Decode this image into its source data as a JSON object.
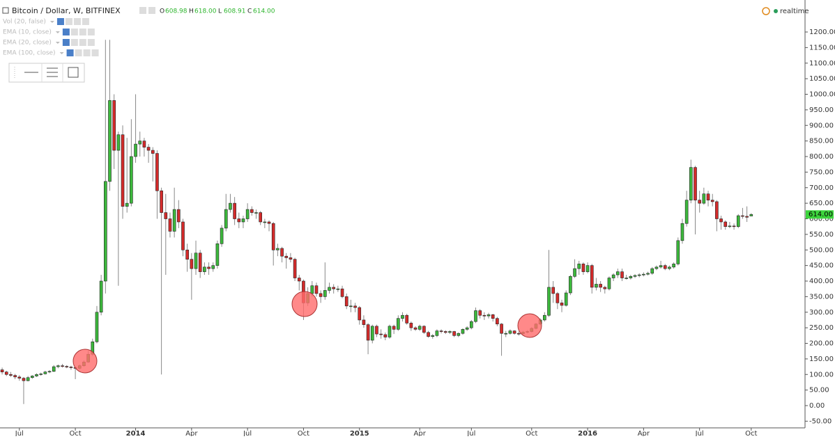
{
  "chart_data": {
    "type": "candlestick",
    "title": "Bitcoin / Dollar, W, BITFINEX",
    "last_value_names": [
      "O",
      "H",
      "L",
      "C"
    ],
    "last_value_labels": [
      "608.98",
      "618.00",
      "608.91",
      "614.00"
    ],
    "indicators": [
      "Vol (20, false)",
      "EMA (10, close)",
      "EMA (20, close)",
      "EMA (100, close)"
    ],
    "status": "realtime",
    "up_color": "#3cb83c",
    "down_color": "#d42b2b",
    "xlim": [
      -0.5,
      186.5
    ],
    "ylim": [
      -71.5,
      1302.8
    ],
    "xticks": [
      {
        "value": 4,
        "label": "Jul"
      },
      {
        "value": 17,
        "label": "Oct"
      },
      {
        "value": 31,
        "label": "2014"
      },
      {
        "value": 44,
        "label": "Apr"
      },
      {
        "value": 57,
        "label": "Jul"
      },
      {
        "value": 70,
        "label": "Oct"
      },
      {
        "value": 83,
        "label": "2015"
      },
      {
        "value": 97,
        "label": "Apr"
      },
      {
        "value": 109,
        "label": "Jul"
      },
      {
        "value": 123,
        "label": "Oct"
      },
      {
        "value": 136,
        "label": "2016"
      },
      {
        "value": 149,
        "label": "Apr"
      },
      {
        "value": 162,
        "label": "Jul"
      },
      {
        "value": 174,
        "label": "Oct"
      }
    ],
    "yticks": [
      {
        "value": -50,
        "label": "-50.00"
      },
      {
        "value": 0,
        "label": "0.00"
      },
      {
        "value": 50,
        "label": "50.00"
      },
      {
        "value": 100,
        "label": "100.00"
      },
      {
        "value": 150,
        "label": "150.00"
      },
      {
        "value": 200,
        "label": "200.00"
      },
      {
        "value": 250,
        "label": "250.00"
      },
      {
        "value": 300,
        "label": "300.00"
      },
      {
        "value": 350,
        "label": "350.00"
      },
      {
        "value": 400,
        "label": "400.00"
      },
      {
        "value": 450,
        "label": "450.00"
      },
      {
        "value": 500,
        "label": "500.00"
      },
      {
        "value": 550,
        "label": "550.00"
      },
      {
        "value": 600,
        "label": "600.00"
      },
      {
        "value": 650,
        "label": "650.00"
      },
      {
        "value": 700,
        "label": "700.00"
      },
      {
        "value": 750,
        "label": "750.00"
      },
      {
        "value": 800,
        "label": "800.00"
      },
      {
        "value": 850,
        "label": "850.00"
      },
      {
        "value": 900,
        "label": "900.00"
      },
      {
        "value": 950,
        "label": "950.00"
      },
      {
        "value": 1000,
        "label": "1000.00"
      },
      {
        "value": 1050,
        "label": "1050.00"
      },
      {
        "value": 1100,
        "label": "1100.00"
      },
      {
        "value": 1150,
        "label": "1150.00"
      },
      {
        "value": 1200,
        "label": "1200.00"
      }
    ],
    "candles": [
      [
        115,
        122,
        100,
        108
      ],
      [
        108,
        112,
        95,
        100
      ],
      [
        100,
        108,
        92,
        97
      ],
      [
        97,
        102,
        85,
        92
      ],
      [
        92,
        98,
        80,
        88
      ],
      [
        88,
        92,
        5,
        80
      ],
      [
        80,
        95,
        78,
        90
      ],
      [
        90,
        98,
        86,
        95
      ],
      [
        95,
        104,
        92,
        100
      ],
      [
        100,
        106,
        96,
        102
      ],
      [
        102,
        112,
        100,
        108
      ],
      [
        108,
        114,
        104,
        110
      ],
      [
        110,
        130,
        108,
        125
      ],
      [
        125,
        132,
        120,
        128
      ],
      [
        128,
        134,
        122,
        126
      ],
      [
        126,
        130,
        120,
        124
      ],
      [
        124,
        128,
        115,
        122
      ],
      [
        122,
        126,
        85,
        120
      ],
      [
        120,
        132,
        116,
        128
      ],
      [
        128,
        145,
        125,
        140
      ],
      [
        140,
        175,
        138,
        165
      ],
      [
        165,
        215,
        160,
        205
      ],
      [
        205,
        320,
        200,
        300
      ],
      [
        300,
        420,
        290,
        400
      ],
      [
        400,
        1175,
        360,
        720
      ],
      [
        720,
        1175,
        690,
        980
      ],
      [
        980,
        1000,
        760,
        820
      ],
      [
        820,
        880,
        385,
        870
      ],
      [
        870,
        900,
        600,
        640
      ],
      [
        640,
        860,
        620,
        650
      ],
      [
        650,
        920,
        640,
        800
      ],
      [
        800,
        1000,
        780,
        840
      ],
      [
        840,
        880,
        800,
        850
      ],
      [
        850,
        860,
        800,
        830
      ],
      [
        830,
        840,
        780,
        820
      ],
      [
        820,
        830,
        720,
        810
      ],
      [
        810,
        820,
        600,
        690
      ],
      [
        690,
        700,
        100,
        620
      ],
      [
        620,
        680,
        420,
        600
      ],
      [
        600,
        620,
        540,
        560
      ],
      [
        560,
        700,
        540,
        630
      ],
      [
        630,
        660,
        570,
        590
      ],
      [
        590,
        600,
        480,
        500
      ],
      [
        500,
        520,
        430,
        470
      ],
      [
        470,
        490,
        340,
        440
      ],
      [
        440,
        530,
        420,
        490
      ],
      [
        490,
        500,
        410,
        430
      ],
      [
        430,
        460,
        420,
        445
      ],
      [
        445,
        460,
        420,
        440
      ],
      [
        440,
        460,
        430,
        450
      ],
      [
        450,
        530,
        440,
        520
      ],
      [
        520,
        580,
        510,
        570
      ],
      [
        570,
        680,
        560,
        630
      ],
      [
        630,
        680,
        620,
        650
      ],
      [
        650,
        670,
        580,
        600
      ],
      [
        600,
        620,
        570,
        590
      ],
      [
        590,
        610,
        570,
        600
      ],
      [
        600,
        650,
        590,
        630
      ],
      [
        630,
        640,
        610,
        620
      ],
      [
        620,
        630,
        600,
        620
      ],
      [
        620,
        625,
        580,
        590
      ],
      [
        590,
        600,
        570,
        590
      ],
      [
        590,
        595,
        560,
        585
      ],
      [
        585,
        590,
        450,
        500
      ],
      [
        500,
        520,
        480,
        505
      ],
      [
        505,
        510,
        460,
        480
      ],
      [
        480,
        490,
        440,
        475
      ],
      [
        475,
        490,
        460,
        470
      ],
      [
        470,
        475,
        400,
        410
      ],
      [
        410,
        420,
        370,
        400
      ],
      [
        400,
        405,
        275,
        330
      ],
      [
        330,
        380,
        320,
        360
      ],
      [
        360,
        400,
        350,
        385
      ],
      [
        385,
        395,
        350,
        360
      ],
      [
        360,
        370,
        330,
        350
      ],
      [
        350,
        460,
        340,
        370
      ],
      [
        370,
        395,
        360,
        380
      ],
      [
        380,
        390,
        360,
        375
      ],
      [
        375,
        385,
        365,
        375
      ],
      [
        375,
        385,
        345,
        350
      ],
      [
        350,
        360,
        310,
        320
      ],
      [
        320,
        340,
        300,
        320
      ],
      [
        320,
        330,
        300,
        315
      ],
      [
        315,
        320,
        260,
        275
      ],
      [
        275,
        290,
        250,
        260
      ],
      [
        260,
        265,
        165,
        210
      ],
      [
        210,
        260,
        200,
        255
      ],
      [
        255,
        260,
        220,
        230
      ],
      [
        230,
        245,
        215,
        228
      ],
      [
        228,
        235,
        210,
        220
      ],
      [
        220,
        260,
        215,
        255
      ],
      [
        255,
        260,
        230,
        245
      ],
      [
        245,
        290,
        240,
        280
      ],
      [
        280,
        300,
        270,
        290
      ],
      [
        290,
        295,
        260,
        265
      ],
      [
        265,
        270,
        240,
        250
      ],
      [
        250,
        255,
        240,
        245
      ],
      [
        245,
        260,
        240,
        255
      ],
      [
        255,
        258,
        230,
        235
      ],
      [
        235,
        240,
        218,
        222
      ],
      [
        222,
        230,
        215,
        225
      ],
      [
        225,
        245,
        220,
        240
      ],
      [
        240,
        245,
        232,
        238
      ],
      [
        238,
        242,
        230,
        235
      ],
      [
        235,
        242,
        230,
        238
      ],
      [
        238,
        240,
        220,
        225
      ],
      [
        225,
        235,
        220,
        232
      ],
      [
        232,
        248,
        228,
        245
      ],
      [
        245,
        255,
        240,
        250
      ],
      [
        250,
        275,
        245,
        270
      ],
      [
        270,
        315,
        265,
        305
      ],
      [
        305,
        310,
        280,
        290
      ],
      [
        290,
        300,
        275,
        288
      ],
      [
        288,
        298,
        280,
        292
      ],
      [
        292,
        295,
        270,
        280
      ],
      [
        280,
        285,
        255,
        262
      ],
      [
        262,
        265,
        160,
        232
      ],
      [
        232,
        240,
        220,
        232
      ],
      [
        232,
        245,
        228,
        240
      ],
      [
        240,
        242,
        228,
        232
      ],
      [
        232,
        238,
        225,
        231
      ],
      [
        231,
        240,
        228,
        236
      ],
      [
        236,
        242,
        232,
        238
      ],
      [
        238,
        252,
        235,
        248
      ],
      [
        248,
        265,
        245,
        262
      ],
      [
        262,
        280,
        258,
        275
      ],
      [
        275,
        300,
        270,
        290
      ],
      [
        290,
        500,
        285,
        380
      ],
      [
        380,
        400,
        330,
        360
      ],
      [
        360,
        365,
        310,
        330
      ],
      [
        330,
        340,
        300,
        322
      ],
      [
        322,
        370,
        318,
        362
      ],
      [
        362,
        420,
        355,
        415
      ],
      [
        415,
        470,
        410,
        440
      ],
      [
        440,
        465,
        420,
        455
      ],
      [
        455,
        460,
        420,
        430
      ],
      [
        430,
        460,
        425,
        450
      ],
      [
        450,
        455,
        360,
        380
      ],
      [
        380,
        410,
        370,
        390
      ],
      [
        390,
        400,
        365,
        380
      ],
      [
        380,
        385,
        360,
        375
      ],
      [
        375,
        415,
        370,
        410
      ],
      [
        410,
        425,
        400,
        420
      ],
      [
        420,
        440,
        410,
        430
      ],
      [
        430,
        440,
        400,
        410
      ],
      [
        410,
        420,
        405,
        410
      ],
      [
        410,
        420,
        405,
        415
      ],
      [
        415,
        422,
        410,
        418
      ],
      [
        418,
        425,
        412,
        420
      ],
      [
        420,
        428,
        415,
        422
      ],
      [
        422,
        430,
        418,
        425
      ],
      [
        425,
        445,
        420,
        440
      ],
      [
        440,
        450,
        435,
        445
      ],
      [
        445,
        465,
        440,
        450
      ],
      [
        450,
        455,
        435,
        440
      ],
      [
        440,
        450,
        435,
        445
      ],
      [
        445,
        460,
        440,
        455
      ],
      [
        455,
        540,
        450,
        530
      ],
      [
        530,
        600,
        520,
        585
      ],
      [
        585,
        690,
        575,
        660
      ],
      [
        660,
        790,
        650,
        765
      ],
      [
        765,
        770,
        550,
        660
      ],
      [
        660,
        690,
        620,
        650
      ],
      [
        650,
        700,
        645,
        680
      ],
      [
        680,
        690,
        640,
        660
      ],
      [
        660,
        680,
        640,
        655
      ],
      [
        655,
        660,
        560,
        600
      ],
      [
        600,
        610,
        565,
        590
      ],
      [
        590,
        595,
        565,
        575
      ],
      [
        575,
        590,
        570,
        577
      ],
      [
        577,
        585,
        565,
        575
      ],
      [
        575,
        615,
        570,
        610
      ],
      [
        610,
        635,
        600,
        608
      ],
      [
        608,
        640,
        590,
        605
      ],
      [
        608.98,
        618,
        608.91,
        614
      ]
    ]
  }
}
